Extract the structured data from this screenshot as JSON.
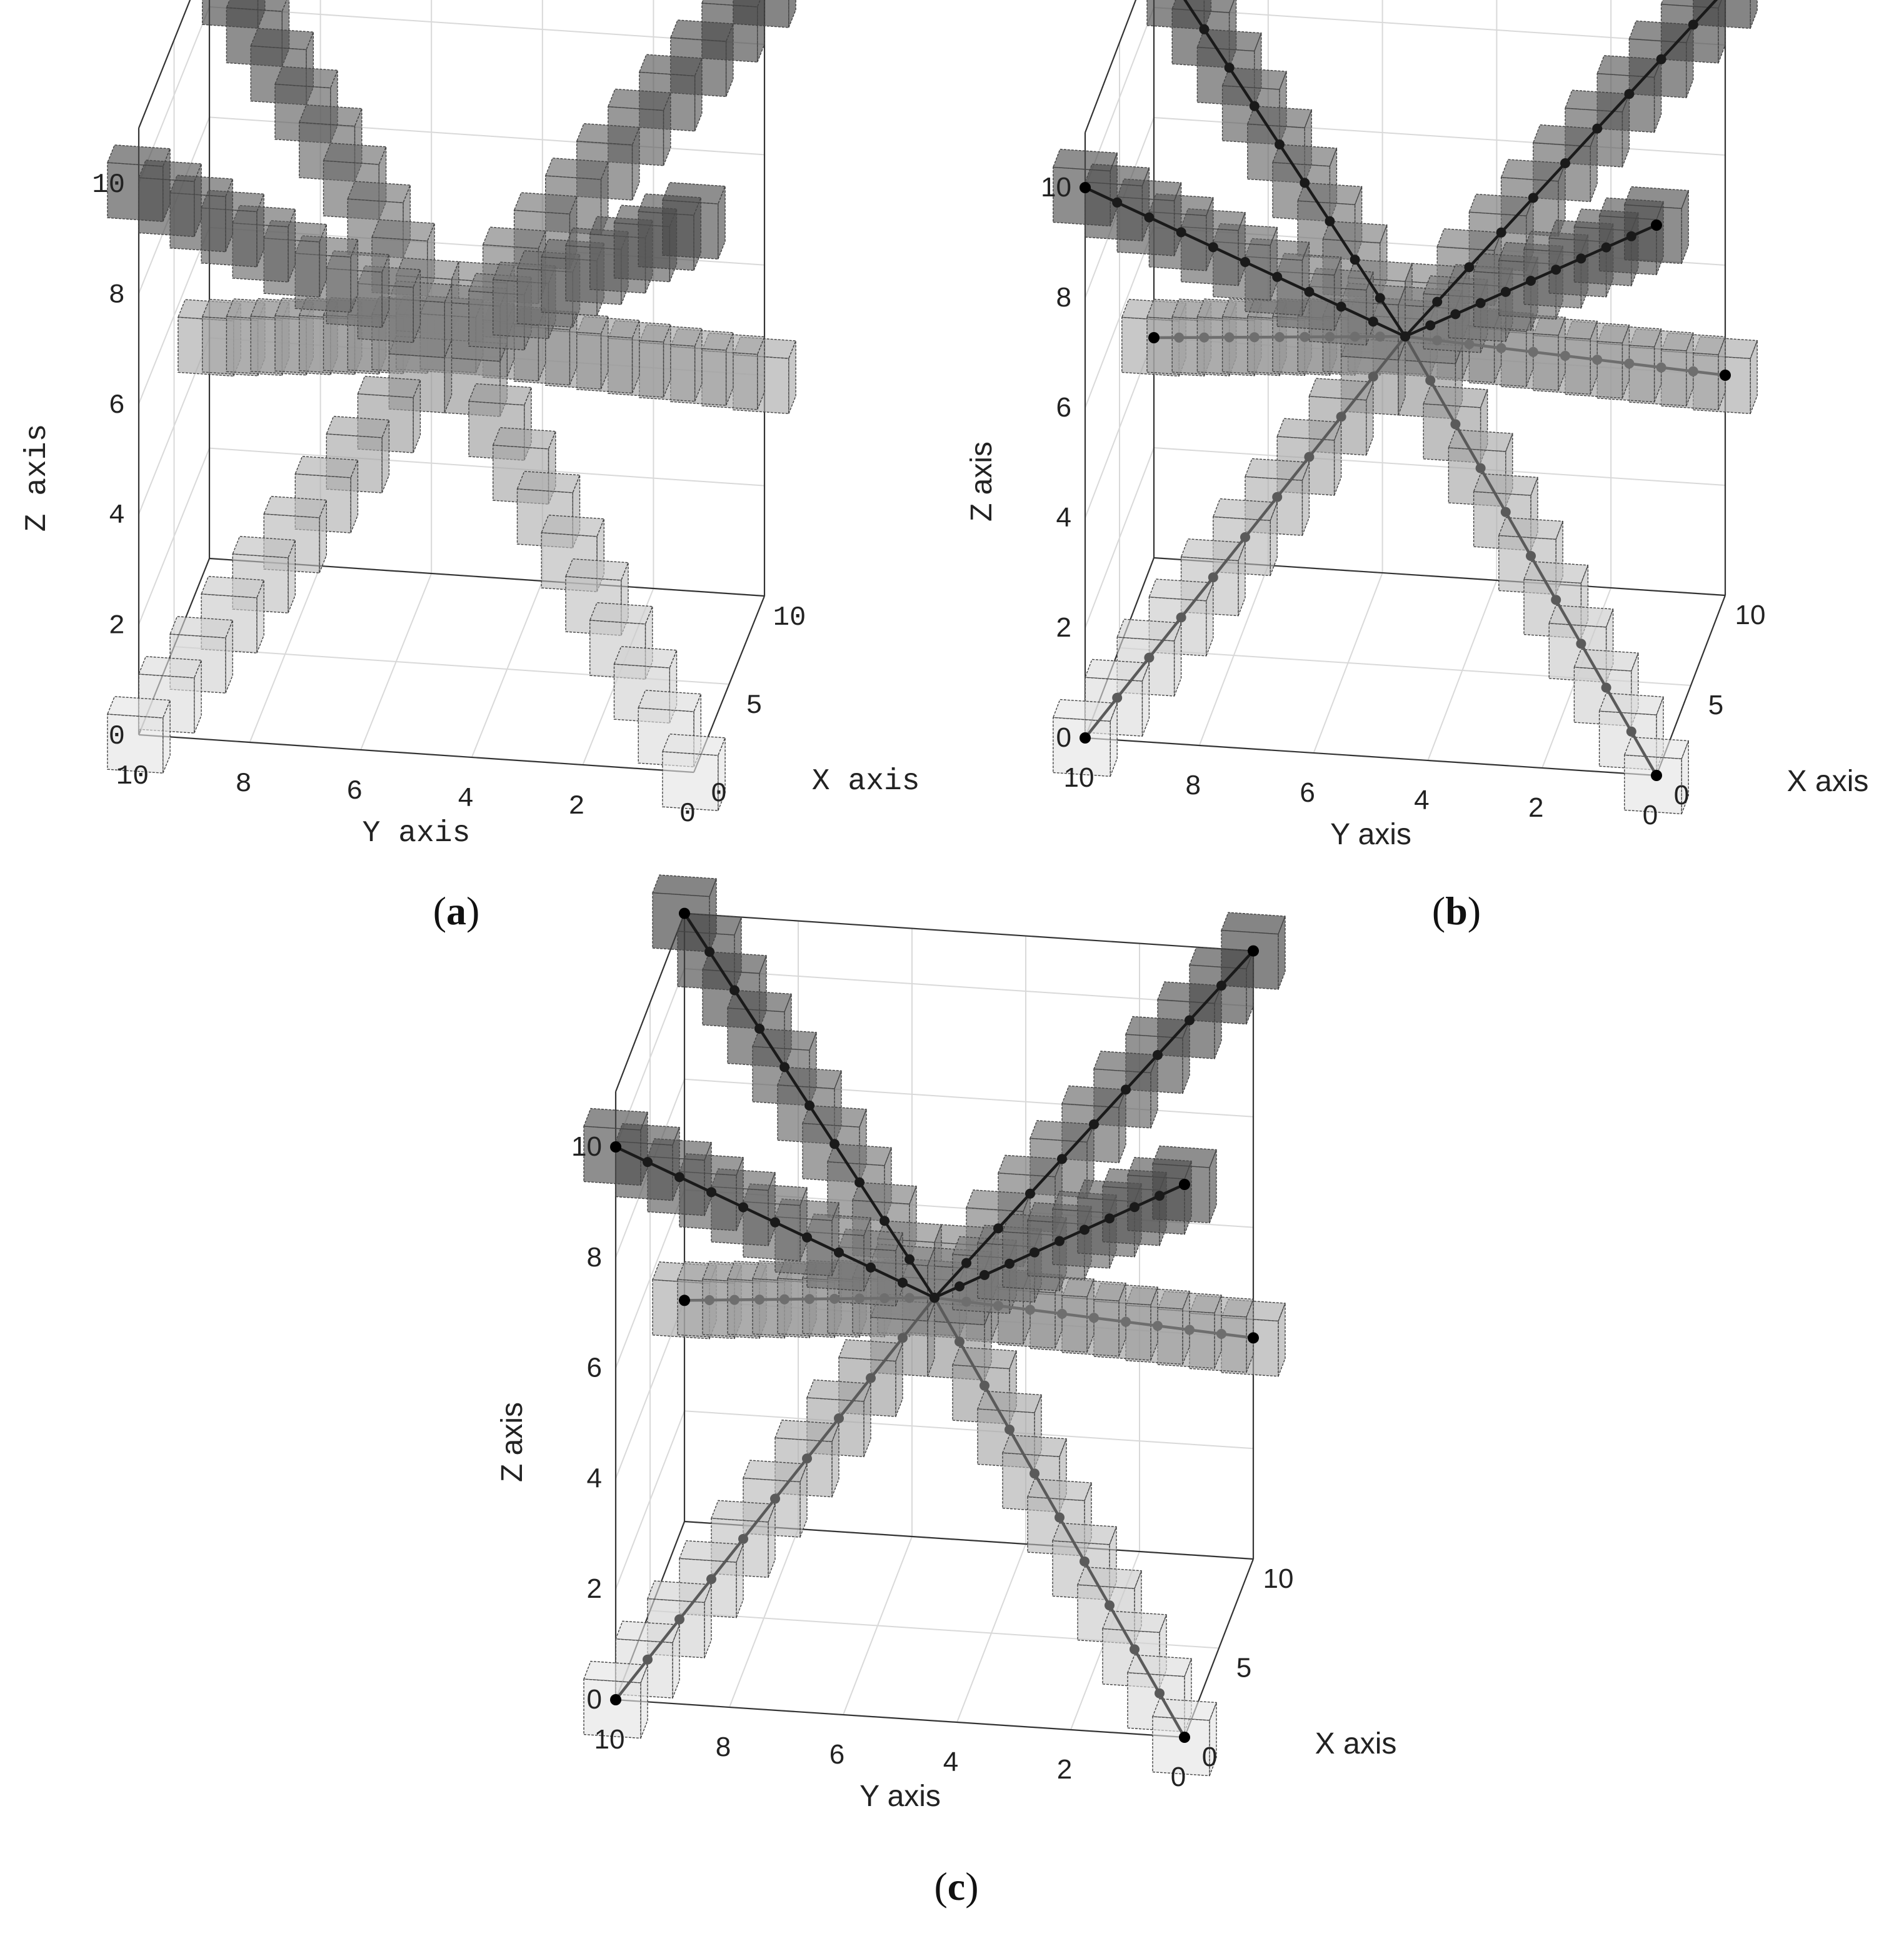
{
  "figure": {
    "captions": [
      "a",
      "b",
      "c"
    ]
  },
  "chart_data": [
    {
      "panel": "a",
      "type": "scatter3d-voxels",
      "xlabel": "X axis",
      "ylabel": "Y axis",
      "zlabel": "Z axis",
      "xlim": [
        0,
        10
      ],
      "ylim": [
        0,
        10
      ],
      "zlim": [
        0,
        11
      ],
      "xticks": [
        "0",
        "5",
        "10"
      ],
      "yticks": [
        "10",
        "8",
        "6",
        "4",
        "2",
        "0"
      ],
      "zticks": [
        "0",
        "2",
        "4",
        "6",
        "8",
        "10"
      ],
      "show_paths": false,
      "grid": true,
      "shading": "darker with height",
      "center": [
        5,
        5,
        6
      ],
      "arms": [
        {
          "end": [
            0,
            10,
            0
          ]
        },
        {
          "end": [
            0,
            0,
            0
          ]
        },
        {
          "end": [
            10,
            10,
            4
          ]
        },
        {
          "end": [
            10,
            0,
            4
          ]
        },
        {
          "end": [
            0,
            10,
            10
          ]
        },
        {
          "end": [
            0,
            0,
            10
          ]
        },
        {
          "end": [
            10,
            10,
            11
          ]
        },
        {
          "end": [
            10,
            0,
            11
          ]
        }
      ]
    },
    {
      "panel": "b",
      "type": "scatter3d-voxels",
      "xlabel": "X axis",
      "ylabel": "Y axis",
      "zlabel": "Z axis",
      "xlim": [
        0,
        10
      ],
      "ylim": [
        0,
        10
      ],
      "zlim": [
        0,
        11
      ],
      "xticks": [
        "0",
        "5",
        "10"
      ],
      "yticks": [
        "10",
        "8",
        "6",
        "4",
        "2",
        "0"
      ],
      "zticks": [
        "0",
        "2",
        "4",
        "6",
        "8",
        "10"
      ],
      "show_paths": true,
      "grid": true,
      "shading": "darker with height",
      "center": [
        5,
        5,
        6
      ],
      "arms": [
        {
          "end": [
            0,
            10,
            0
          ]
        },
        {
          "end": [
            0,
            0,
            0
          ]
        },
        {
          "end": [
            10,
            10,
            4
          ]
        },
        {
          "end": [
            10,
            0,
            4
          ]
        },
        {
          "end": [
            0,
            10,
            10
          ]
        },
        {
          "end": [
            0,
            0,
            10
          ]
        },
        {
          "end": [
            10,
            10,
            11
          ]
        },
        {
          "end": [
            10,
            0,
            11
          ]
        }
      ]
    },
    {
      "panel": "c",
      "type": "scatter3d-voxels",
      "xlabel": "X axis",
      "ylabel": "Y axis",
      "zlabel": "Z axis",
      "xlim": [
        0,
        10
      ],
      "ylim": [
        0,
        10
      ],
      "zlim": [
        0,
        11
      ],
      "xticks": [
        "0",
        "5",
        "10"
      ],
      "yticks": [
        "10",
        "8",
        "6",
        "4",
        "2",
        "0"
      ],
      "zticks": [
        "0",
        "2",
        "4",
        "6",
        "8",
        "10"
      ],
      "show_paths": true,
      "grid": true,
      "shading": "darker with height",
      "center": [
        5,
        5,
        6
      ],
      "arms": [
        {
          "end": [
            0,
            10,
            0
          ]
        },
        {
          "end": [
            0,
            0,
            0
          ]
        },
        {
          "end": [
            10,
            10,
            4
          ]
        },
        {
          "end": [
            10,
            0,
            4
          ]
        },
        {
          "end": [
            0,
            10,
            10
          ]
        },
        {
          "end": [
            0,
            0,
            10
          ]
        },
        {
          "end": [
            10,
            10,
            11
          ]
        },
        {
          "end": [
            10,
            0,
            11
          ]
        }
      ]
    }
  ]
}
